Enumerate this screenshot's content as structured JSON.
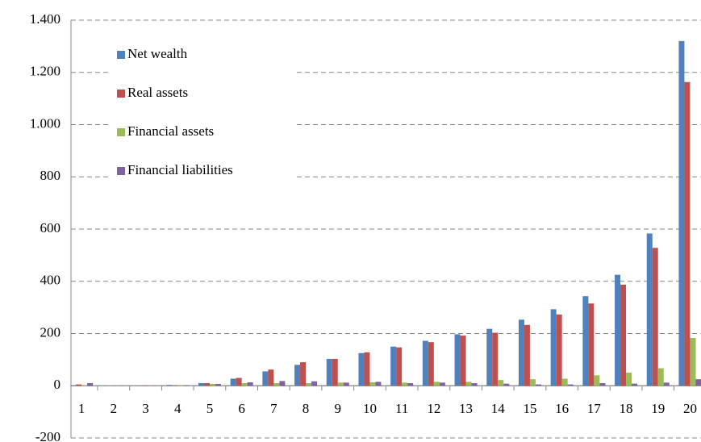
{
  "chart_data": {
    "type": "bar",
    "categories": [
      "1",
      "2",
      "3",
      "4",
      "5",
      "6",
      "7",
      "8",
      "9",
      "10",
      "11",
      "12",
      "13",
      "14",
      "15",
      "16",
      "17",
      "18",
      "19",
      "20"
    ],
    "series": [
      {
        "name": "Net wealth",
        "color": "#4f81bd",
        "values": [
          2,
          0,
          0,
          3,
          10,
          27,
          55,
          80,
          103,
          125,
          150,
          172,
          197,
          218,
          253,
          293,
          343,
          425,
          583,
          1320
        ]
      },
      {
        "name": "Real assets",
        "color": "#c0504d",
        "values": [
          5,
          0,
          1,
          2,
          10,
          30,
          62,
          90,
          103,
          128,
          147,
          167,
          192,
          203,
          233,
          273,
          315,
          387,
          528,
          1163
        ]
      },
      {
        "name": "Financial assets",
        "color": "#9bbb59",
        "values": [
          2,
          0,
          0,
          2,
          7,
          10,
          10,
          10,
          12,
          13,
          12,
          15,
          15,
          22,
          25,
          27,
          40,
          50,
          67,
          183
        ]
      },
      {
        "name": "Financial liabilities",
        "color": "#8064a2",
        "values": [
          10,
          0,
          0,
          2,
          7,
          13,
          18,
          17,
          12,
          15,
          10,
          12,
          10,
          8,
          5,
          5,
          10,
          8,
          12,
          25
        ]
      }
    ],
    "ylim": [
      -200,
      1400
    ],
    "yticks": [
      -200,
      0,
      200,
      400,
      600,
      800,
      {
        "value": 1000,
        "label": "1.000"
      },
      {
        "value": 1200,
        "label": "1.200"
      },
      {
        "value": 1400,
        "label": "1.400"
      }
    ],
    "grid": true,
    "legend": "top-left"
  }
}
